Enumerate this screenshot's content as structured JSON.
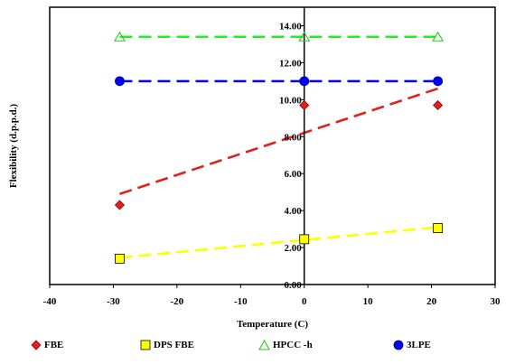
{
  "chart_data": {
    "type": "scatter",
    "xlabel": "Temperature (C)",
    "ylabel": "Flexibility (d.p.p.d.)",
    "xlim": [
      -40,
      30
    ],
    "ylim": [
      0,
      15
    ],
    "x_ticks": [
      -40,
      -30,
      -20,
      -10,
      0,
      10,
      20,
      30
    ],
    "x_tick_labels": [
      "-40",
      "-30",
      "-20",
      "-10",
      "0",
      "10",
      "20",
      "30"
    ],
    "y_ticks": [
      0,
      2,
      4,
      6,
      8,
      10,
      12,
      14
    ],
    "y_tick_labels": [
      "0.00",
      "2.00",
      "4.00",
      "6.00",
      "8.00",
      "10.00",
      "12.00",
      "14.00"
    ],
    "grid": false,
    "legend_position": "bottom",
    "series": [
      {
        "name": "FBE",
        "marker": "diamond",
        "color": "#e02020",
        "x": [
          -29,
          0,
          21
        ],
        "y": [
          4.3,
          9.7,
          9.7
        ],
        "trendline": {
          "x": [
            -29,
            21
          ],
          "y": [
            4.9,
            10.6
          ],
          "color": "#e02020"
        }
      },
      {
        "name": "DPS FBE",
        "marker": "square",
        "color": "#ffff00",
        "x": [
          -29,
          0,
          21
        ],
        "y": [
          1.4,
          2.45,
          3.05
        ],
        "trendline": {
          "x": [
            -29,
            21
          ],
          "y": [
            1.45,
            3.1
          ],
          "color": "#ffff00"
        }
      },
      {
        "name": "HPCC -h",
        "marker": "triangle",
        "color": "#22cc22",
        "x": [
          -29,
          0,
          21
        ],
        "y": [
          13.4,
          13.4,
          13.4
        ],
        "trendline": {
          "x": [
            -29,
            21
          ],
          "y": [
            13.4,
            13.4
          ],
          "color": "#22ee22"
        }
      },
      {
        "name": "3LPE",
        "marker": "circle",
        "color": "#0000ff",
        "x": [
          -29,
          0,
          21
        ],
        "y": [
          11.0,
          11.0,
          11.0
        ],
        "trendline": {
          "x": [
            -29,
            21
          ],
          "y": [
            11.0,
            11.0
          ],
          "color": "#0000ff"
        }
      }
    ]
  }
}
